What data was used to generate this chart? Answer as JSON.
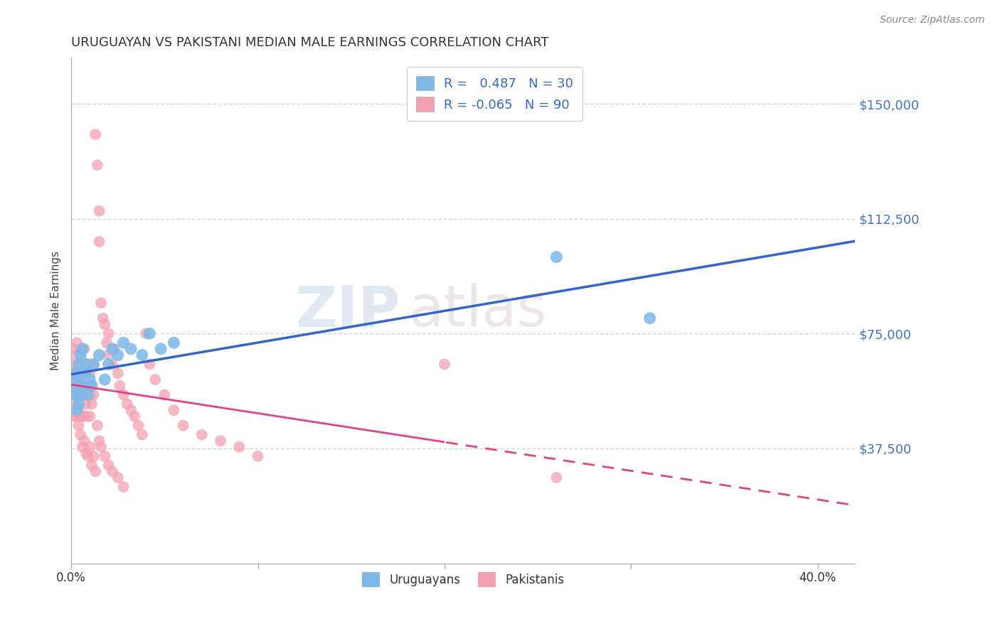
{
  "title": "URUGUAYAN VS PAKISTANI MEDIAN MALE EARNINGS CORRELATION CHART",
  "source": "Source: ZipAtlas.com",
  "ylabel": "Median Male Earnings",
  "yticks": [
    0,
    37500,
    75000,
    112500,
    150000
  ],
  "ytick_labels": [
    "",
    "$37,500",
    "$75,000",
    "$112,500",
    "$150,000"
  ],
  "xlim": [
    0.0,
    0.42
  ],
  "ylim": [
    10000,
    165000
  ],
  "watermark_zip": "ZIP",
  "watermark_atlas": "atlas",
  "uruguayan_color": "#7cb9e8",
  "pakistani_color": "#f4a0b0",
  "uruguayan_R": 0.487,
  "uruguayan_N": 30,
  "pakistani_R": -0.065,
  "pakistani_N": 90,
  "uruguayan_x": [
    0.001,
    0.002,
    0.002,
    0.003,
    0.003,
    0.004,
    0.004,
    0.005,
    0.005,
    0.006,
    0.006,
    0.007,
    0.008,
    0.009,
    0.01,
    0.011,
    0.012,
    0.015,
    0.018,
    0.02,
    0.022,
    0.025,
    0.028,
    0.032,
    0.038,
    0.042,
    0.048,
    0.055,
    0.26,
    0.31
  ],
  "uruguayan_y": [
    58000,
    55000,
    62000,
    60000,
    50000,
    65000,
    52000,
    68000,
    55000,
    70000,
    58000,
    62000,
    65000,
    55000,
    60000,
    58000,
    65000,
    68000,
    60000,
    65000,
    70000,
    68000,
    72000,
    70000,
    68000,
    75000,
    70000,
    72000,
    100000,
    80000
  ],
  "pakistani_x": [
    0.001,
    0.001,
    0.001,
    0.001,
    0.002,
    0.002,
    0.002,
    0.002,
    0.002,
    0.003,
    0.003,
    0.003,
    0.003,
    0.003,
    0.004,
    0.004,
    0.004,
    0.004,
    0.004,
    0.005,
    0.005,
    0.005,
    0.005,
    0.006,
    0.006,
    0.006,
    0.007,
    0.007,
    0.008,
    0.008,
    0.008,
    0.009,
    0.009,
    0.01,
    0.01,
    0.01,
    0.011,
    0.011,
    0.012,
    0.012,
    0.013,
    0.014,
    0.015,
    0.015,
    0.016,
    0.017,
    0.018,
    0.019,
    0.02,
    0.02,
    0.022,
    0.023,
    0.025,
    0.026,
    0.028,
    0.03,
    0.032,
    0.034,
    0.036,
    0.038,
    0.04,
    0.042,
    0.045,
    0.05,
    0.055,
    0.06,
    0.07,
    0.08,
    0.09,
    0.1,
    0.004,
    0.005,
    0.006,
    0.007,
    0.008,
    0.009,
    0.01,
    0.011,
    0.012,
    0.013,
    0.014,
    0.015,
    0.016,
    0.018,
    0.02,
    0.022,
    0.025,
    0.028,
    0.2,
    0.26
  ],
  "pakistani_y": [
    70000,
    62000,
    58000,
    55000,
    68000,
    60000,
    52000,
    48000,
    65000,
    72000,
    55000,
    62000,
    48000,
    58000,
    65000,
    55000,
    50000,
    60000,
    52000,
    68000,
    58000,
    48000,
    62000,
    65000,
    55000,
    48000,
    70000,
    58000,
    62000,
    52000,
    48000,
    58000,
    65000,
    62000,
    55000,
    48000,
    58000,
    52000,
    65000,
    55000,
    140000,
    130000,
    115000,
    105000,
    85000,
    80000,
    78000,
    72000,
    75000,
    68000,
    65000,
    70000,
    62000,
    58000,
    55000,
    52000,
    50000,
    48000,
    45000,
    42000,
    75000,
    65000,
    60000,
    55000,
    50000,
    45000,
    42000,
    40000,
    38000,
    35000,
    45000,
    42000,
    38000,
    40000,
    36000,
    35000,
    38000,
    32000,
    35000,
    30000,
    45000,
    40000,
    38000,
    35000,
    32000,
    30000,
    28000,
    25000,
    65000,
    28000
  ],
  "background_color": "#ffffff",
  "grid_color": "#cccccc",
  "tick_color": "#4472c4",
  "legend_uruguayan_label": "Uruguayans",
  "legend_pakistani_label": "Pakistanis"
}
